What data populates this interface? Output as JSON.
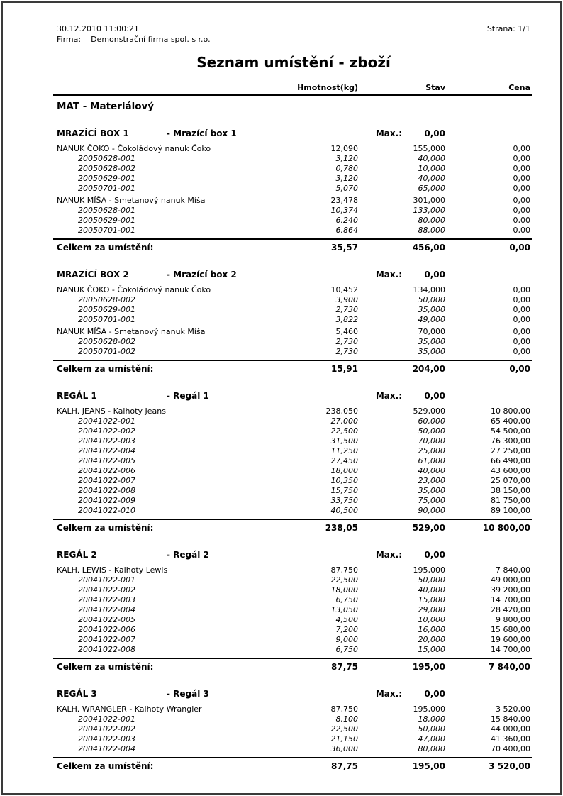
{
  "page": {
    "datetime": "30.12.2010  11:00:21",
    "firm_label": "Firma:",
    "firm_name": "Demonstrační firma spol. s r.o.",
    "page_label": "Strana: 1/1",
    "title": "Seznam umístění - zboží"
  },
  "columns": {
    "weight": "Hmotnost(kg)",
    "stav": "Stav",
    "cena": "Cena"
  },
  "group": {
    "title": "MAT - Materiálový"
  },
  "total_label": "Celkem za umístění:",
  "max_label": "Max.:",
  "locations": [
    {
      "code": "MRAZÍCÍ BOX 1",
      "desc": "- Mrazící box 1",
      "max_value": "0,00",
      "products": [
        {
          "name": "NANUK ČOKO - Čokoládový nanuk Čoko",
          "weight": "12,090",
          "stav": "155,000",
          "cena": "0,00",
          "batches": [
            {
              "id": "20050628-001",
              "weight": "3,120",
              "stav": "40,000",
              "cena": "0,00"
            },
            {
              "id": "20050628-002",
              "weight": "0,780",
              "stav": "10,000",
              "cena": "0,00"
            },
            {
              "id": "20050629-001",
              "weight": "3,120",
              "stav": "40,000",
              "cena": "0,00"
            },
            {
              "id": "20050701-001",
              "weight": "5,070",
              "stav": "65,000",
              "cena": "0,00"
            }
          ]
        },
        {
          "name": "NANUK MÍŠA - Smetanový nanuk Míša",
          "weight": "23,478",
          "stav": "301,000",
          "cena": "0,00",
          "batches": [
            {
              "id": "20050628-001",
              "weight": "10,374",
              "stav": "133,000",
              "cena": "0,00"
            },
            {
              "id": "20050629-001",
              "weight": "6,240",
              "stav": "80,000",
              "cena": "0,00"
            },
            {
              "id": "20050701-001",
              "weight": "6,864",
              "stav": "88,000",
              "cena": "0,00"
            }
          ]
        }
      ],
      "total": {
        "weight": "35,57",
        "stav": "456,00",
        "cena": "0,00"
      }
    },
    {
      "code": "MRAZÍCÍ BOX 2",
      "desc": "- Mrazící box 2",
      "max_value": "0,00",
      "products": [
        {
          "name": "NANUK ČOKO - Čokoládový nanuk Čoko",
          "weight": "10,452",
          "stav": "134,000",
          "cena": "0,00",
          "batches": [
            {
              "id": "20050628-002",
              "weight": "3,900",
              "stav": "50,000",
              "cena": "0,00"
            },
            {
              "id": "20050629-001",
              "weight": "2,730",
              "stav": "35,000",
              "cena": "0,00"
            },
            {
              "id": "20050701-001",
              "weight": "3,822",
              "stav": "49,000",
              "cena": "0,00"
            }
          ]
        },
        {
          "name": "NANUK MÍŠA - Smetanový nanuk Míša",
          "weight": "5,460",
          "stav": "70,000",
          "cena": "0,00",
          "batches": [
            {
              "id": "20050628-002",
              "weight": "2,730",
              "stav": "35,000",
              "cena": "0,00"
            },
            {
              "id": "20050701-002",
              "weight": "2,730",
              "stav": "35,000",
              "cena": "0,00"
            }
          ]
        }
      ],
      "total": {
        "weight": "15,91",
        "stav": "204,00",
        "cena": "0,00"
      }
    },
    {
      "code": "REGÁL 1",
      "desc": "- Regál 1",
      "max_value": "0,00",
      "products": [
        {
          "name": "KALH. JEANS - Kalhoty Jeans",
          "weight": "238,050",
          "stav": "529,000",
          "cena": "10 800,00",
          "batches": [
            {
              "id": "20041022-001",
              "weight": "27,000",
              "stav": "60,000",
              "cena": "65 400,00"
            },
            {
              "id": "20041022-002",
              "weight": "22,500",
              "stav": "50,000",
              "cena": "54 500,00"
            },
            {
              "id": "20041022-003",
              "weight": "31,500",
              "stav": "70,000",
              "cena": "76 300,00"
            },
            {
              "id": "20041022-004",
              "weight": "11,250",
              "stav": "25,000",
              "cena": "27 250,00"
            },
            {
              "id": "20041022-005",
              "weight": "27,450",
              "stav": "61,000",
              "cena": "66 490,00"
            },
            {
              "id": "20041022-006",
              "weight": "18,000",
              "stav": "40,000",
              "cena": "43 600,00"
            },
            {
              "id": "20041022-007",
              "weight": "10,350",
              "stav": "23,000",
              "cena": "25 070,00"
            },
            {
              "id": "20041022-008",
              "weight": "15,750",
              "stav": "35,000",
              "cena": "38 150,00"
            },
            {
              "id": "20041022-009",
              "weight": "33,750",
              "stav": "75,000",
              "cena": "81 750,00"
            },
            {
              "id": "20041022-010",
              "weight": "40,500",
              "stav": "90,000",
              "cena": "89 100,00"
            }
          ]
        }
      ],
      "total": {
        "weight": "238,05",
        "stav": "529,00",
        "cena": "10 800,00"
      }
    },
    {
      "code": "REGÁL 2",
      "desc": "- Regál 2",
      "max_value": "0,00",
      "products": [
        {
          "name": "KALH. LEWIS - Kalhoty Lewis",
          "weight": "87,750",
          "stav": "195,000",
          "cena": "7 840,00",
          "batches": [
            {
              "id": "20041022-001",
              "weight": "22,500",
              "stav": "50,000",
              "cena": "49 000,00"
            },
            {
              "id": "20041022-002",
              "weight": "18,000",
              "stav": "40,000",
              "cena": "39 200,00"
            },
            {
              "id": "20041022-003",
              "weight": "6,750",
              "stav": "15,000",
              "cena": "14 700,00"
            },
            {
              "id": "20041022-004",
              "weight": "13,050",
              "stav": "29,000",
              "cena": "28 420,00"
            },
            {
              "id": "20041022-005",
              "weight": "4,500",
              "stav": "10,000",
              "cena": "9 800,00"
            },
            {
              "id": "20041022-006",
              "weight": "7,200",
              "stav": "16,000",
              "cena": "15 680,00"
            },
            {
              "id": "20041022-007",
              "weight": "9,000",
              "stav": "20,000",
              "cena": "19 600,00"
            },
            {
              "id": "20041022-008",
              "weight": "6,750",
              "stav": "15,000",
              "cena": "14 700,00"
            }
          ]
        }
      ],
      "total": {
        "weight": "87,75",
        "stav": "195,00",
        "cena": "7 840,00"
      }
    },
    {
      "code": "REGÁL 3",
      "desc": "- Regál 3",
      "max_value": "0,00",
      "products": [
        {
          "name": "KALH. WRANGLER - Kalhoty Wrangler",
          "weight": "87,750",
          "stav": "195,000",
          "cena": "3 520,00",
          "batches": [
            {
              "id": "20041022-001",
              "weight": "8,100",
              "stav": "18,000",
              "cena": "15 840,00"
            },
            {
              "id": "20041022-002",
              "weight": "22,500",
              "stav": "50,000",
              "cena": "44 000,00"
            },
            {
              "id": "20041022-003",
              "weight": "21,150",
              "stav": "47,000",
              "cena": "41 360,00"
            },
            {
              "id": "20041022-004",
              "weight": "36,000",
              "stav": "80,000",
              "cena": "70 400,00"
            }
          ]
        }
      ],
      "total": {
        "weight": "87,75",
        "stav": "195,00",
        "cena": "3 520,00"
      }
    }
  ]
}
